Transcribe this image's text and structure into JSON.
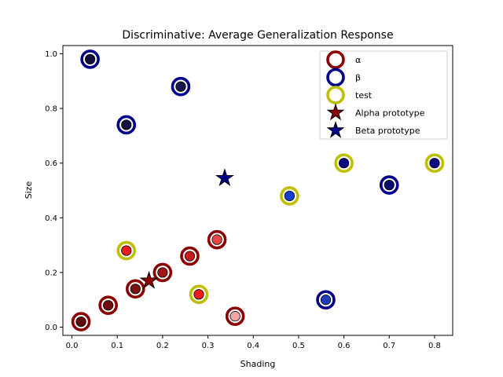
{
  "chart_data": {
    "type": "scatter",
    "title": "Discriminative: Average Generalization Response",
    "xlabel": "Shading",
    "ylabel": "Size",
    "xlim": [
      -0.02,
      0.84
    ],
    "ylim": [
      -0.03,
      1.03
    ],
    "xticks": [
      "0.0",
      "0.1",
      "0.2",
      "0.3",
      "0.4",
      "0.5",
      "0.6",
      "0.7",
      "0.8"
    ],
    "yticks": [
      "0.0",
      "0.2",
      "0.4",
      "0.6",
      "0.8",
      "1.0"
    ],
    "grid": false,
    "legend_position": "top-right",
    "colors": {
      "alpha": "#8b0000",
      "beta": "#00008b",
      "test": "#bfbf00"
    },
    "series": [
      {
        "name": "α",
        "ring": "#8b0000",
        "points": [
          {
            "x": 0.02,
            "y": 0.02,
            "fill": "#5e0a0a"
          },
          {
            "x": 0.08,
            "y": 0.08,
            "fill": "#6e0c0c"
          },
          {
            "x": 0.14,
            "y": 0.14,
            "fill": "#7a1515"
          },
          {
            "x": 0.2,
            "y": 0.2,
            "fill": "#a01515"
          },
          {
            "x": 0.26,
            "y": 0.26,
            "fill": "#c81c1c"
          },
          {
            "x": 0.32,
            "y": 0.32,
            "fill": "#e64545"
          },
          {
            "x": 0.36,
            "y": 0.04,
            "fill": "#f2a6a6"
          }
        ]
      },
      {
        "name": "β",
        "ring": "#00008b",
        "points": [
          {
            "x": 0.04,
            "y": 0.98,
            "fill": "#10103a"
          },
          {
            "x": 0.12,
            "y": 0.74,
            "fill": "#141440"
          },
          {
            "x": 0.24,
            "y": 0.88,
            "fill": "#181848"
          },
          {
            "x": 0.56,
            "y": 0.1,
            "fill": "#1f3cbf"
          },
          {
            "x": 0.7,
            "y": 0.52,
            "fill": "#0a0a70"
          }
        ]
      },
      {
        "name": "test",
        "ring": "#bfbf00",
        "points": [
          {
            "x": 0.12,
            "y": 0.28,
            "fill": "#ee1c1c"
          },
          {
            "x": 0.28,
            "y": 0.12,
            "fill": "#ee1c1c"
          },
          {
            "x": 0.48,
            "y": 0.48,
            "fill": "#1540d0"
          },
          {
            "x": 0.6,
            "y": 0.6,
            "fill": "#0a0a80"
          },
          {
            "x": 0.8,
            "y": 0.6,
            "fill": "#0a0a80"
          }
        ]
      },
      {
        "name": "Alpha prototype",
        "marker": "star",
        "fill": "#8b0000",
        "points": [
          {
            "x": 0.17,
            "y": 0.17
          }
        ]
      },
      {
        "name": "Beta prototype",
        "marker": "star",
        "fill": "#00008b",
        "points": [
          {
            "x": 0.337,
            "y": 0.545
          }
        ]
      }
    ]
  }
}
